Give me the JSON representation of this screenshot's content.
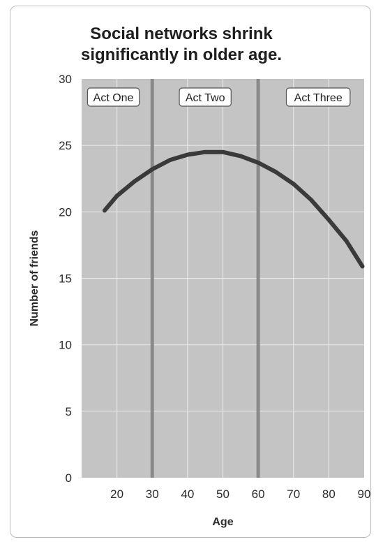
{
  "chart_data": {
    "type": "line",
    "title_line1": "Social networks shrink",
    "title_line2": "significantly in older age.",
    "xlabel": "Age",
    "ylabel": "Number of friends",
    "xlim": [
      10,
      90
    ],
    "ylim": [
      0,
      30
    ],
    "x_ticks": [
      20,
      30,
      40,
      50,
      60,
      70,
      80,
      90
    ],
    "y_ticks": [
      0,
      5,
      10,
      15,
      20,
      25,
      30
    ],
    "grid": true,
    "dividers": [
      30,
      60
    ],
    "acts": [
      {
        "label": "Act One",
        "center": 19
      },
      {
        "label": "Act Two",
        "center": 45
      },
      {
        "label": "Act Three",
        "center": 77
      }
    ],
    "series": [
      {
        "x": [
          16.5,
          20,
          25,
          30,
          35,
          40,
          45,
          48,
          50,
          55,
          60,
          65,
          70,
          75,
          80,
          85,
          89.5
        ],
        "y": [
          20.1,
          21.2,
          22.3,
          23.2,
          23.9,
          24.3,
          24.5,
          24.5,
          24.5,
          24.2,
          23.7,
          23.0,
          22.1,
          20.9,
          19.4,
          17.8,
          15.9
        ]
      }
    ],
    "colors": {
      "plot_bg": "#c4c4c4",
      "grid": "#e6e6e6",
      "divider": "#8a8a8a",
      "line": "#3a3a3a",
      "label_box_border": "#555555"
    }
  }
}
